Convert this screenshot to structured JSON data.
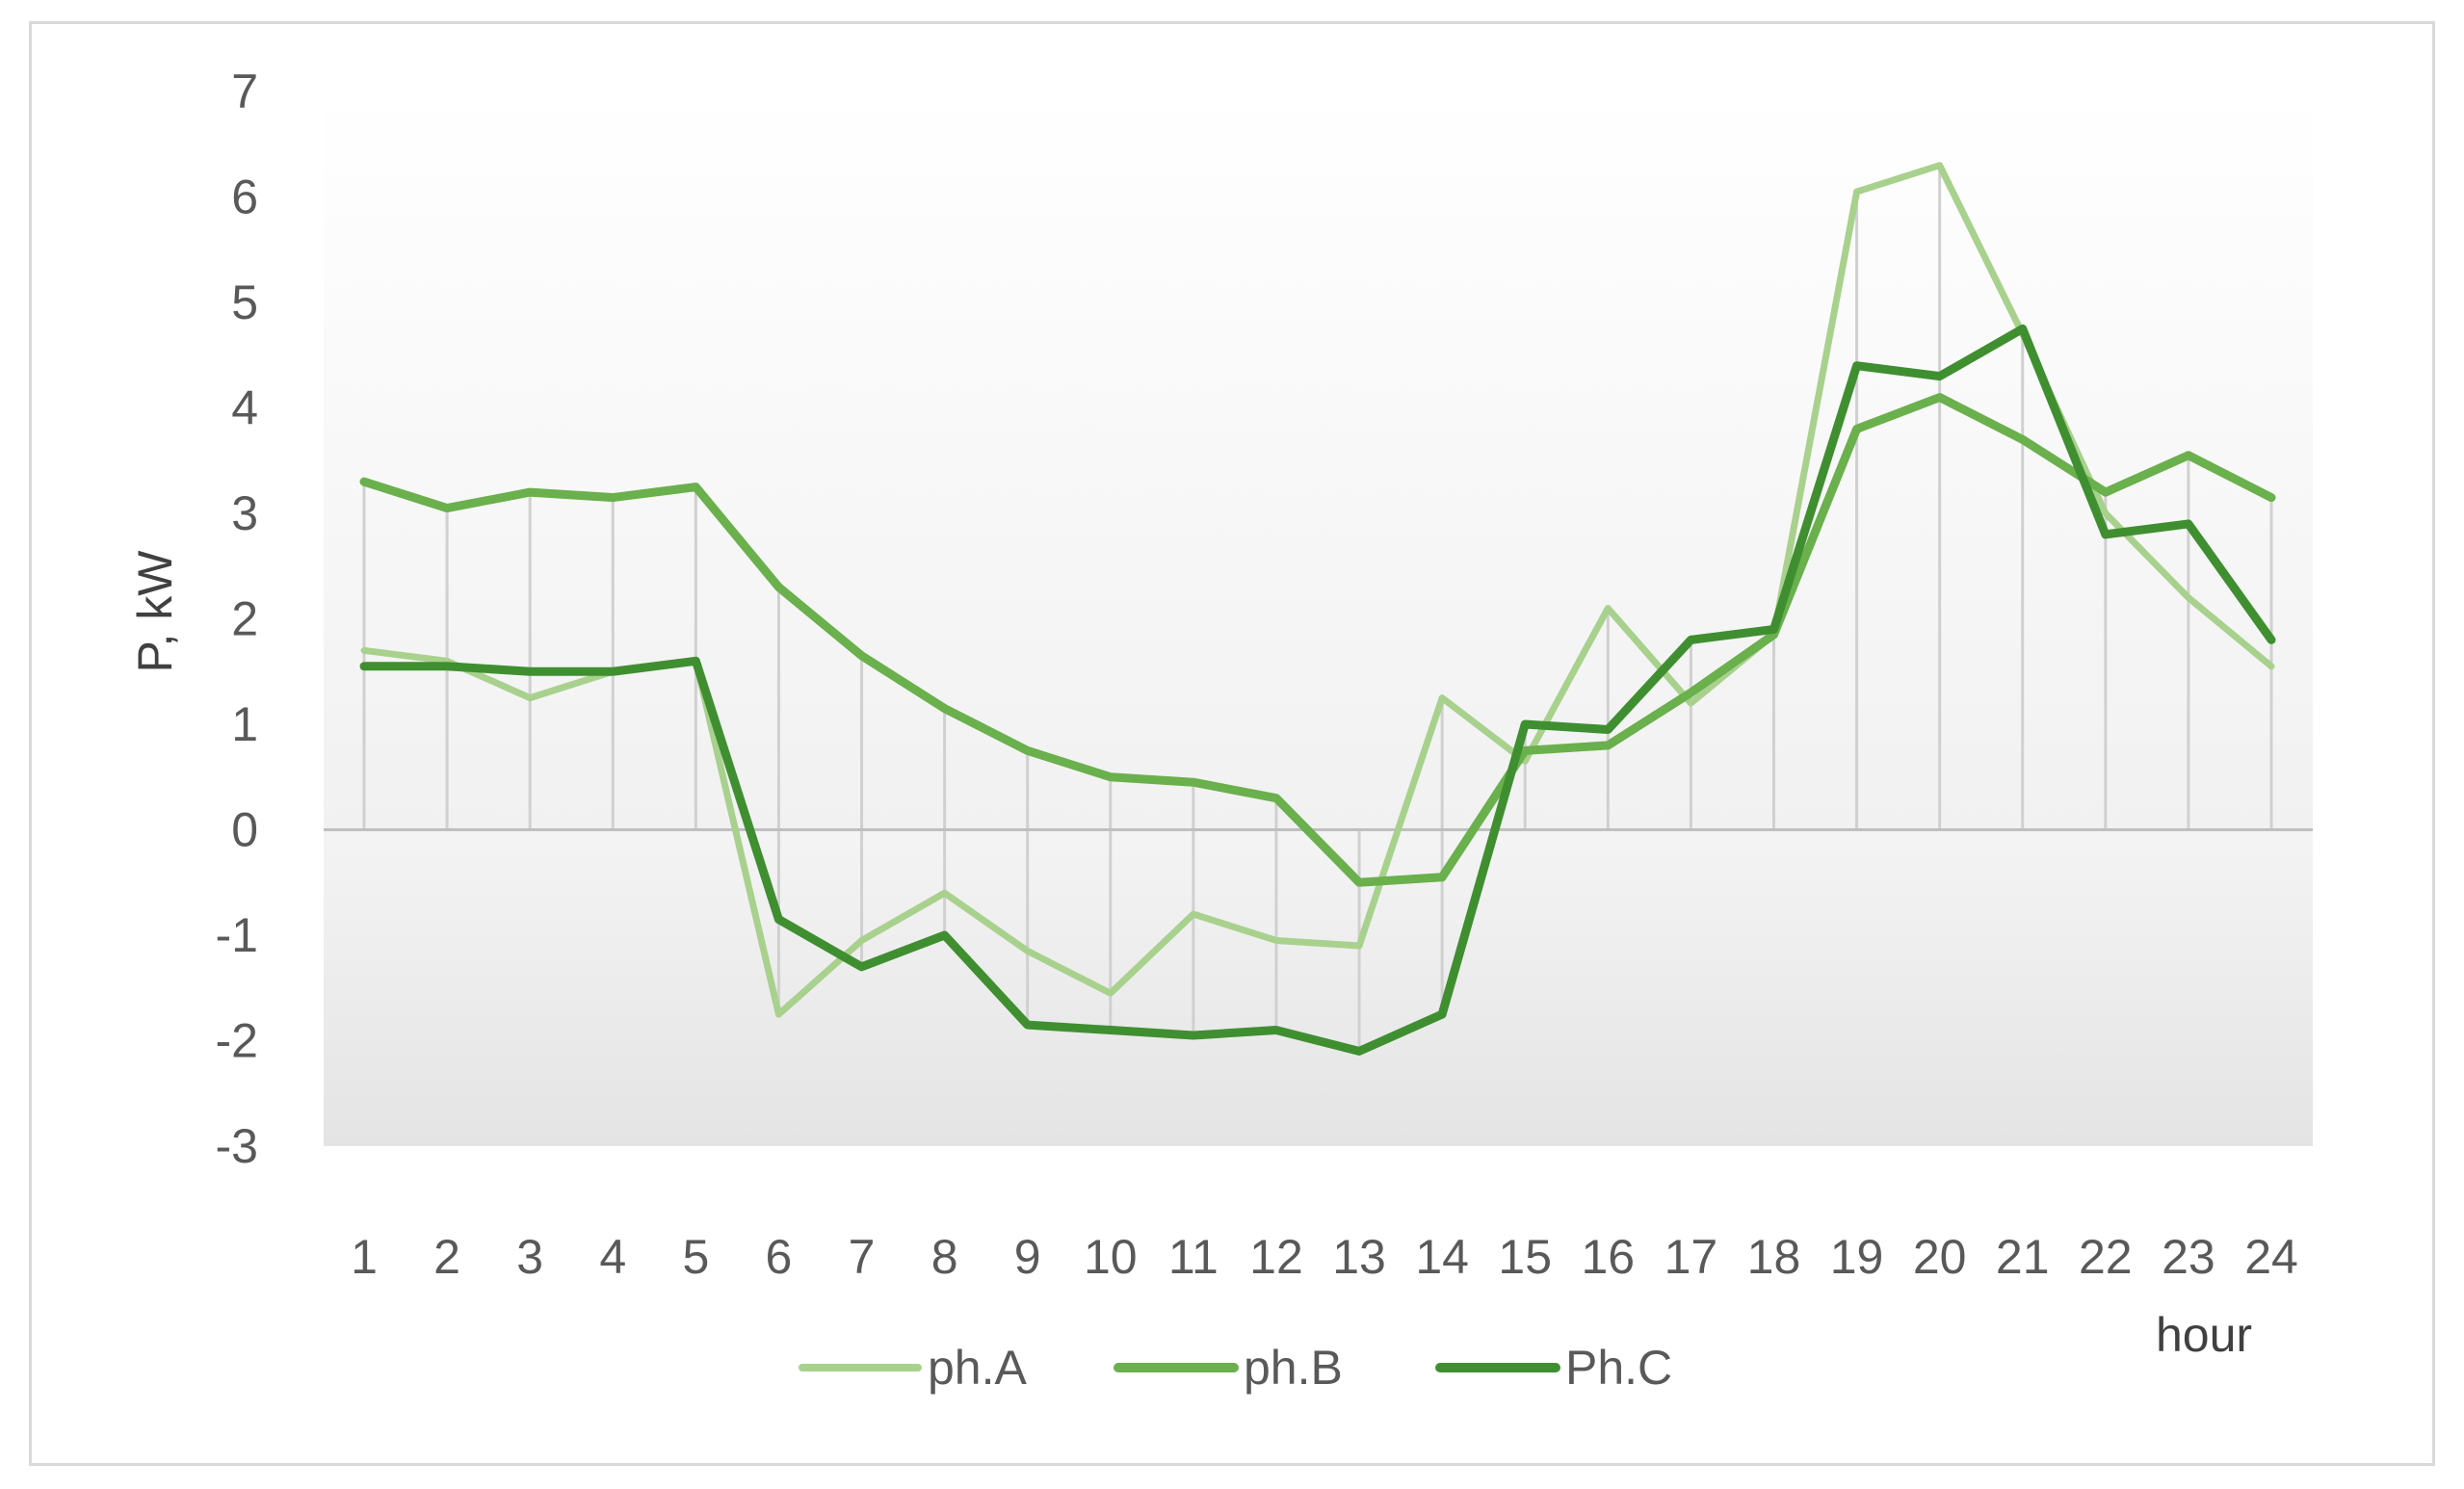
{
  "chart_data": {
    "type": "line",
    "title": "",
    "xlabel": "hour",
    "ylabel": "P, kW",
    "x": [
      1,
      2,
      3,
      4,
      5,
      6,
      7,
      8,
      9,
      10,
      11,
      12,
      13,
      14,
      15,
      16,
      17,
      18,
      19,
      20,
      21,
      22,
      23,
      24
    ],
    "xticks": [
      "1",
      "2",
      "3",
      "4",
      "5",
      "6",
      "7",
      "8",
      "9",
      "10",
      "11",
      "12",
      "13",
      "14",
      "15",
      "16",
      "17",
      "18",
      "19",
      "20",
      "21",
      "22",
      "23",
      "24"
    ],
    "ylim": [
      -3,
      7
    ],
    "yticks": [
      "-3",
      "-2",
      "-1",
      "0",
      "1",
      "2",
      "3",
      "4",
      "5",
      "6",
      "7"
    ],
    "grid": "vertical drop lines at each hour",
    "legend": "bottom-center",
    "series": [
      {
        "name": "ph.A",
        "color": "#a9d18e",
        "values": [
          1.7,
          1.6,
          1.25,
          1.5,
          1.6,
          -1.75,
          -1.05,
          -0.6,
          -1.15,
          -1.55,
          -0.8,
          -1.05,
          -1.1,
          1.25,
          0.65,
          2.1,
          1.2,
          1.85,
          6.05,
          6.3,
          4.7,
          3.0,
          2.2,
          1.55
        ]
      },
      {
        "name": "ph.B",
        "color": "#6ab04c",
        "values": [
          3.3,
          3.05,
          3.2,
          3.15,
          3.25,
          2.3,
          1.65,
          1.15,
          0.75,
          0.5,
          0.45,
          0.3,
          -0.5,
          -0.45,
          0.75,
          0.8,
          1.3,
          1.85,
          3.8,
          4.1,
          3.7,
          3.2,
          3.55,
          3.15
        ]
      },
      {
        "name": "Ph.C",
        "color": "#3f8f31",
        "values": [
          1.55,
          1.55,
          1.5,
          1.5,
          1.6,
          -0.85,
          -1.3,
          -1.0,
          -1.85,
          -1.9,
          -1.95,
          -1.9,
          -2.1,
          -1.75,
          1.0,
          0.95,
          1.8,
          1.9,
          4.4,
          4.3,
          4.75,
          2.8,
          2.9,
          1.8
        ]
      }
    ]
  }
}
